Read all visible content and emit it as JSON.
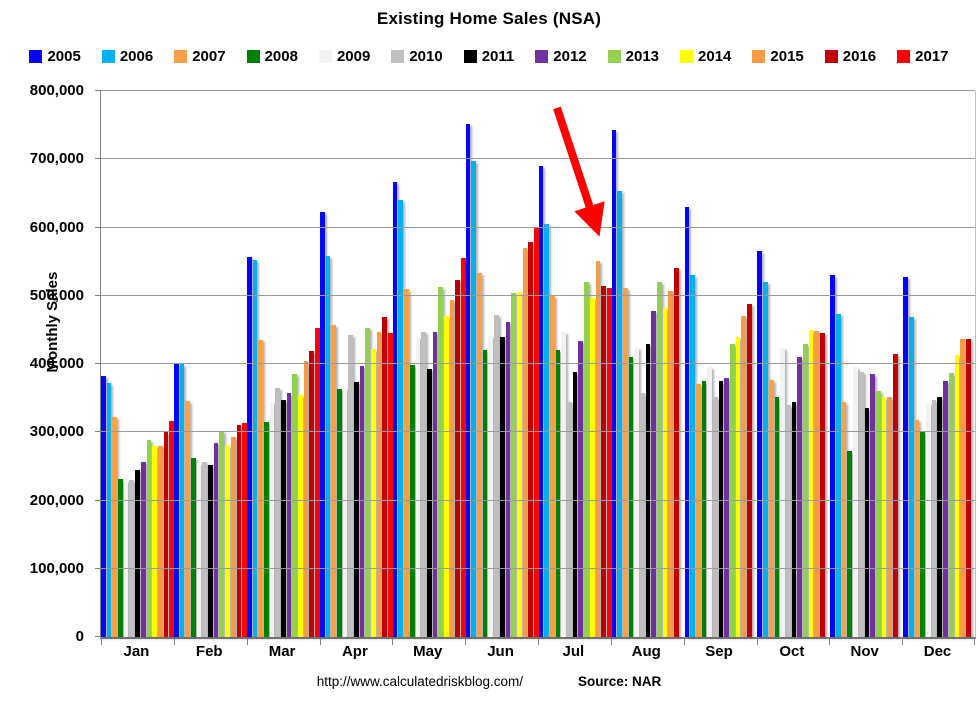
{
  "title": "Existing Home Sales (NSA)",
  "footer": {
    "url": "http://www.calculatedriskblog.com/",
    "source": "Source: NAR"
  },
  "y_axis": {
    "label": "Monthly Sales",
    "ticks": [
      "0",
      "100,000",
      "200,000",
      "300,000",
      "400,000",
      "500,000",
      "600,000",
      "700,000",
      "800,000"
    ]
  },
  "annotation": {
    "shape": "arrow",
    "color": "#FF0000",
    "points_to": "Jul 2017",
    "from": [
      557,
      108
    ],
    "to": [
      596,
      226
    ]
  },
  "chart_data": {
    "type": "bar",
    "title": "Existing Home Sales (NSA)",
    "xlabel": "",
    "ylabel": "Monthly Sales",
    "ylim": [
      0,
      800000
    ],
    "grid": true,
    "legend_position": "top",
    "source": "Source: NAR",
    "categories": [
      "Jan",
      "Feb",
      "Mar",
      "Apr",
      "May",
      "Jun",
      "Jul",
      "Aug",
      "Sep",
      "Oct",
      "Nov",
      "Dec"
    ],
    "series": [
      {
        "name": "2005",
        "color": "#0505FF",
        "values": [
          383000,
          401000,
          557000,
          623000,
          667000,
          752000,
          690000,
          743000,
          630000,
          565000,
          530000,
          528000
        ]
      },
      {
        "name": "2006",
        "color": "#00B0F0",
        "values": [
          372000,
          400000,
          552000,
          558000,
          640000,
          698000,
          605000,
          653000,
          530000,
          520000,
          473000,
          469000
        ]
      },
      {
        "name": "2007",
        "color": "#FAA148",
        "values": [
          322000,
          346000,
          435000,
          457000,
          510000,
          533000,
          500000,
          511000,
          370000,
          376000,
          344000,
          318000
        ]
      },
      {
        "name": "2008",
        "color": "#008000",
        "values": [
          232000,
          262000,
          315000,
          363000,
          398000,
          420000,
          420000,
          410000,
          375000,
          352000,
          273000,
          302000
        ]
      },
      {
        "name": "2009",
        "color": "#F2F2F2",
        "values": [
          230000,
          255000,
          345000,
          365000,
          440000,
          441000,
          447000,
          424000,
          395000,
          423000,
          395000,
          343000
        ]
      },
      {
        "name": "2010",
        "color": "#BFBFBF",
        "values": [
          230000,
          257000,
          365000,
          442000,
          447000,
          472000,
          345000,
          358000,
          352000,
          340000,
          388000,
          347000
        ]
      },
      {
        "name": "2011",
        "color": "#000000",
        "values": [
          245000,
          252000,
          347000,
          374000,
          393000,
          440000,
          388000,
          430000,
          375000,
          345000,
          335000,
          352000
        ]
      },
      {
        "name": "2012",
        "color": "#7030A0",
        "values": [
          257000,
          285000,
          358000,
          397000,
          447000,
          461000,
          433000,
          478000,
          380000,
          410000,
          385000,
          375000
        ]
      },
      {
        "name": "2013",
        "color": "#92D050",
        "values": [
          289000,
          302000,
          385000,
          453000,
          513000,
          504000,
          520000,
          520000,
          430000,
          430000,
          360000,
          387000
        ]
      },
      {
        "name": "2014",
        "color": "#FFFF00",
        "values": [
          280000,
          281000,
          355000,
          422000,
          470000,
          505000,
          497000,
          482000,
          440000,
          450000,
          352000,
          413000
        ]
      },
      {
        "name": "2015",
        "color": "#F89B45",
        "values": [
          280000,
          293000,
          404000,
          447000,
          494000,
          570000,
          551000,
          507000,
          470000,
          448000,
          352000,
          437000
        ]
      },
      {
        "name": "2016",
        "color": "#C00000",
        "values": [
          301000,
          310000,
          419000,
          469000,
          523000,
          579000,
          514000,
          541000,
          488000,
          446000,
          415000,
          436000
        ]
      },
      {
        "name": "2017",
        "color": "#FF0000",
        "values": [
          316000,
          313000,
          453000,
          445000,
          555000,
          600000,
          511000,
          null,
          null,
          null,
          null,
          null
        ]
      }
    ]
  }
}
